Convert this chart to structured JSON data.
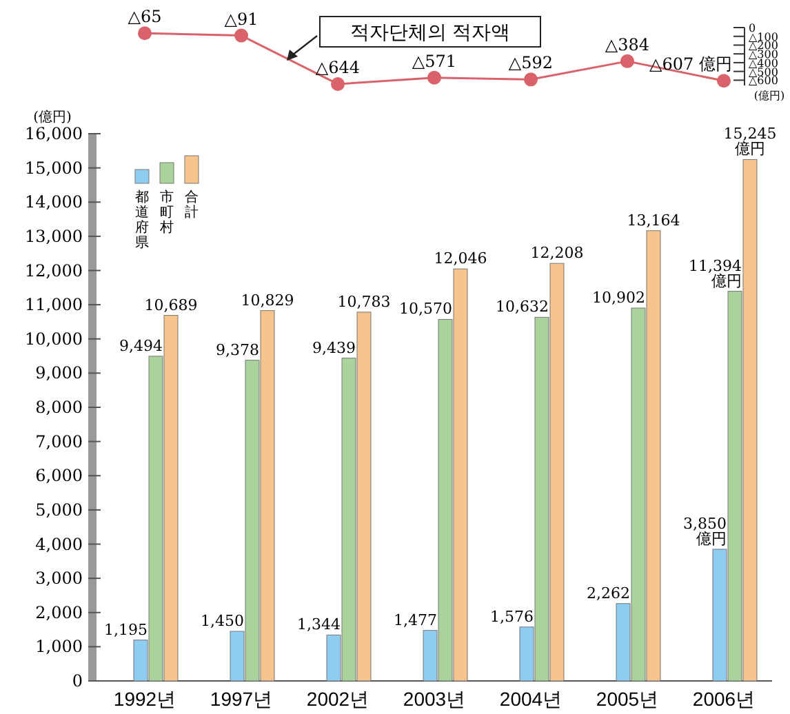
{
  "chart_data": [
    {
      "type": "line",
      "categories": [
        null,
        null,
        null,
        null,
        null,
        null,
        null
      ],
      "series": [
        {
          "color": "#d9626b",
          "values": [
            65,
            91,
            644,
            571,
            592,
            384,
            607
          ],
          "value_labels": [
            "△65",
            "△91",
            "△644",
            "△571",
            "△592",
            "△384",
            "△607 億円"
          ]
        }
      ],
      "marker": "circle",
      "ylim": [
        660,
        0
      ],
      "yticks": [
        {
          "value": 0,
          "label": "0"
        },
        {
          "value": 100,
          "label": "△100"
        },
        {
          "value": 200,
          "label": "△200"
        },
        {
          "value": 300,
          "label": "△300"
        },
        {
          "value": 400,
          "label": "△400"
        },
        {
          "value": 500,
          "label": "△500"
        },
        {
          "value": 600,
          "label": "△600"
        }
      ],
      "annotations": [
        "적자단체의 적자액",
        "(億円)"
      ]
    },
    {
      "type": "bar",
      "categories": [
        "1992년",
        "1997년",
        "2002년",
        "2003년",
        "2004년",
        "2005년",
        "2006년"
      ],
      "series": [
        {
          "name": "都道府県",
          "color": "#8ecdf0",
          "values": [
            1195,
            1450,
            1344,
            1477,
            1576,
            2262,
            3850
          ],
          "value_labels": [
            "1,195",
            "1,450",
            "1,344",
            "1,477",
            "1,576",
            "2,262",
            "3,850 億円"
          ]
        },
        {
          "name": "市町村",
          "color": "#a9d39a",
          "values": [
            9494,
            9378,
            9439,
            10570,
            10632,
            10902,
            11394
          ],
          "value_labels": [
            "9,494",
            "9,378",
            "9,439",
            "10,570",
            "10,632",
            "10,902",
            "11,394 億円"
          ]
        },
        {
          "name": "合計",
          "color": "#f6c48c",
          "values": [
            10689,
            10829,
            10783,
            12046,
            12208,
            13164,
            15245
          ],
          "value_labels": [
            "10,689",
            "10,829",
            "10,783",
            "12,046",
            "12,208",
            "13,164",
            "15,245 億円"
          ]
        }
      ],
      "ylim": [
        0,
        16000
      ],
      "yticks": [
        {
          "value": 0,
          "label": "0"
        },
        {
          "value": 1000,
          "label": "1,000"
        },
        {
          "value": 2000,
          "label": "2,000"
        },
        {
          "value": 3000,
          "label": "3,000"
        },
        {
          "value": 4000,
          "label": "4,000"
        },
        {
          "value": 5000,
          "label": "5,000"
        },
        {
          "value": 6000,
          "label": "6,000"
        },
        {
          "value": 7000,
          "label": "7,000"
        },
        {
          "value": 8000,
          "label": "8,000"
        },
        {
          "value": 9000,
          "label": "9,000"
        },
        {
          "value": 10000,
          "label": "10,000"
        },
        {
          "value": 11000,
          "label": "11,000"
        },
        {
          "value": 12000,
          "label": "12,000"
        },
        {
          "value": 13000,
          "label": "13,000"
        },
        {
          "value": 14000,
          "label": "14,000"
        },
        {
          "value": 15000,
          "label": "15,000"
        },
        {
          "value": 16000,
          "label": "16,000"
        }
      ],
      "ylabel": "(億円)",
      "legend": "top left"
    }
  ]
}
